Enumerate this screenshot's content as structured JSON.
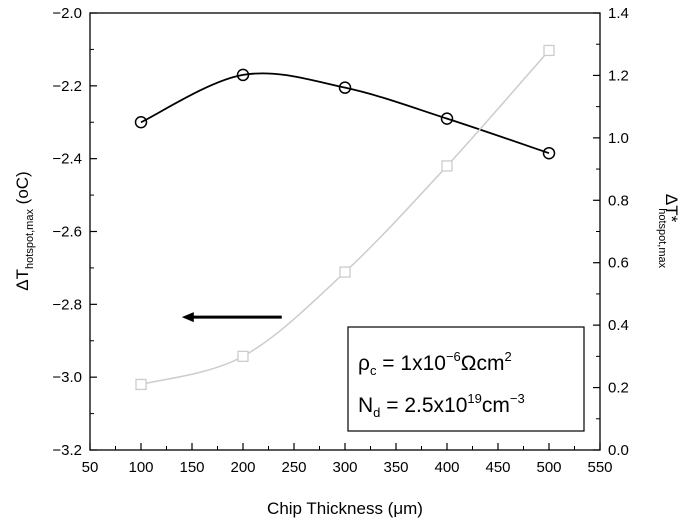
{
  "chart_data": {
    "type": "line",
    "title": "",
    "x": [
      100,
      200,
      300,
      400,
      500
    ],
    "xlabel": "Chip Thickness (μm)",
    "xlim": [
      50,
      550
    ],
    "xticks": [
      50,
      100,
      150,
      200,
      250,
      300,
      350,
      400,
      450,
      500,
      550
    ],
    "ylabel_left": {
      "main": "ΔT",
      "sub": "hotspot,max",
      "unit": " (oC)"
    },
    "ylim_left": [
      -3.2,
      -2.0
    ],
    "yticks_left": [
      "−2.0",
      "−2.2",
      "−2.4",
      "−2.6",
      "−2.8",
      "−3.0",
      "−3.2"
    ],
    "ylabel_right": {
      "main": "ΔT*",
      "sub": "hotspot,max"
    },
    "ylim_right": [
      0.0,
      1.4
    ],
    "yticks_right": [
      "1.4",
      "1.2",
      "1.0",
      "0.8",
      "0.6",
      "0.4",
      "0.2",
      "0.0"
    ],
    "grid": false,
    "series": [
      {
        "axis": "left",
        "marker": "circle",
        "color": "#000000",
        "values": [
          -2.3,
          -2.17,
          -2.205,
          -2.29,
          -2.385
        ]
      },
      {
        "axis": "right",
        "marker": "square",
        "color": "#cccccc",
        "values": [
          0.21,
          0.3,
          0.57,
          0.91,
          1.28
        ]
      }
    ],
    "arrow": {
      "direction": "left",
      "from_x": 238,
      "to_x": 140,
      "y_left": -2.835,
      "color": "#000000"
    },
    "annotation": {
      "line1": {
        "a": "ρ",
        "a_sub": "c",
        "b": " = 1x10",
        "sup": "−6",
        "c": "Ωcm",
        "sup2": "2"
      },
      "line2": {
        "a": "N",
        "a_sub": "d",
        "b": " = 2.5x10",
        "sup": "19",
        "c": "cm",
        "sup2": "−3"
      }
    }
  }
}
